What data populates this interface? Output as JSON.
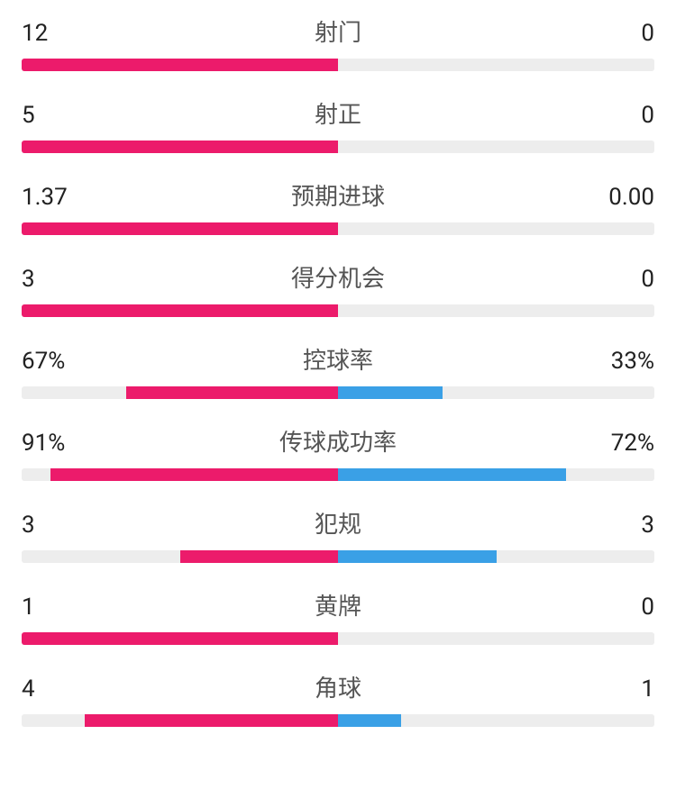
{
  "colors": {
    "home": "#ec1b6b",
    "away": "#3aa0e6",
    "track": "#ededed"
  },
  "stats": [
    {
      "label": "射门",
      "home": "12",
      "away": "0",
      "homePct": 100,
      "awayPct": 0
    },
    {
      "label": "射正",
      "home": "5",
      "away": "0",
      "homePct": 100,
      "awayPct": 0
    },
    {
      "label": "预期进球",
      "home": "1.37",
      "away": "0.00",
      "homePct": 100,
      "awayPct": 0
    },
    {
      "label": "得分机会",
      "home": "3",
      "away": "0",
      "homePct": 100,
      "awayPct": 0
    },
    {
      "label": "控球率",
      "home": "67%",
      "away": "33%",
      "homePct": 67,
      "awayPct": 33
    },
    {
      "label": "传球成功率",
      "home": "91%",
      "away": "72%",
      "homePct": 91,
      "awayPct": 72
    },
    {
      "label": "犯规",
      "home": "3",
      "away": "3",
      "homePct": 50,
      "awayPct": 50
    },
    {
      "label": "黄牌",
      "home": "1",
      "away": "0",
      "homePct": 100,
      "awayPct": 0
    },
    {
      "label": "角球",
      "home": "4",
      "away": "1",
      "homePct": 80,
      "awayPct": 20
    }
  ]
}
